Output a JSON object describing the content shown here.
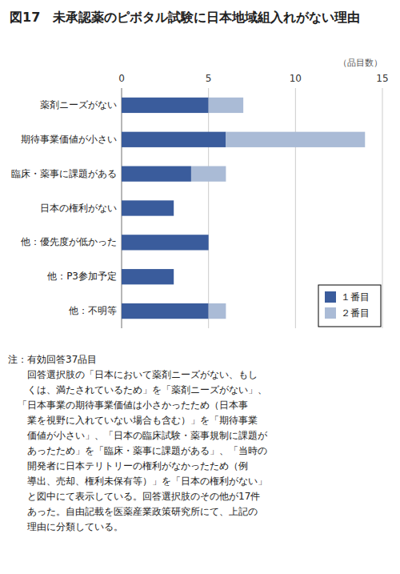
{
  "chart_data": {
    "type": "bar",
    "orientation": "horizontal",
    "stacked": true,
    "title": "図17　未承認薬のピボタル試験に日本地域組入れがない理由",
    "xlabel": "（品目数）",
    "categories": [
      "薬剤ニーズがない",
      "期待事業価値が小さい",
      "臨床・薬事に課題がある",
      "日本の権利がない",
      "他：優先度が低かった",
      "他：P3参加予定",
      "他：不明等"
    ],
    "series": [
      {
        "name": "１番目",
        "color": "#3A5C9C",
        "values": [
          5,
          6,
          4,
          3,
          5,
          3,
          5
        ]
      },
      {
        "name": "２番目",
        "color": "#AABBD6",
        "values": [
          2,
          8,
          2,
          0,
          0,
          0,
          1
        ]
      }
    ],
    "xlim": [
      0,
      15
    ],
    "xticks": [
      0,
      5,
      10,
      15
    ],
    "grid": true,
    "legend": "lower right",
    "annotations": [
      "注：有効回答37品目",
      "　　回答選択肢の「日本において薬剤ニーズがない、もし",
      "　　くは、満たされているため」を「薬剤ニーズがない」、",
      "　「日本事業の期待事業価値は小さかったため（日本事",
      "　　業を視野に入れていない場合も含む）」を「期待事業",
      "　　価値が小さい」、「日本の臨床試験・薬事規制に課題が",
      "　　あったため」を「臨床・薬事に課題がある」、「当時の",
      "　　開発者に日本テリトリーの権利がなかったため（例",
      "　　導出、売却、権利未保有等）」を「日本の権利がない」",
      "　　と図中にて表示している。回答選択肢のその他が17件",
      "　　あった。自由記載を医薬産業政策研究所にて、上記の",
      "　　理由に分類している。"
    ]
  }
}
